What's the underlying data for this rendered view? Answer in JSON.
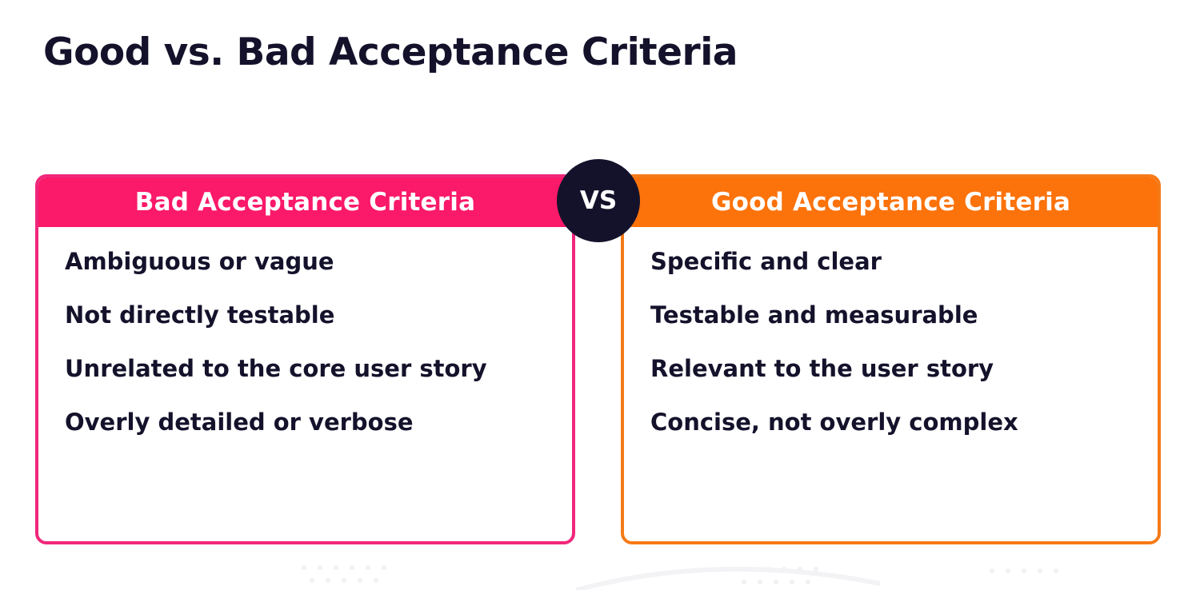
{
  "title": "Good vs. Bad Acceptance Criteria",
  "vs_label": "VS",
  "bad": {
    "header": "Bad Acceptance Criteria",
    "items": [
      "Ambiguous or vague",
      "Not directly testable",
      "Unrelated to the core user story",
      "Overly detailed or verbose"
    ]
  },
  "good": {
    "header": "Good Acceptance Criteria",
    "items": [
      "Specific and clear",
      "Testable and measurable",
      "Relevant to the user story",
      "Concise, not overly complex"
    ]
  },
  "colors": {
    "bad_accent": "#fb1969",
    "good_accent": "#fc720b",
    "dark": "#14122b"
  }
}
